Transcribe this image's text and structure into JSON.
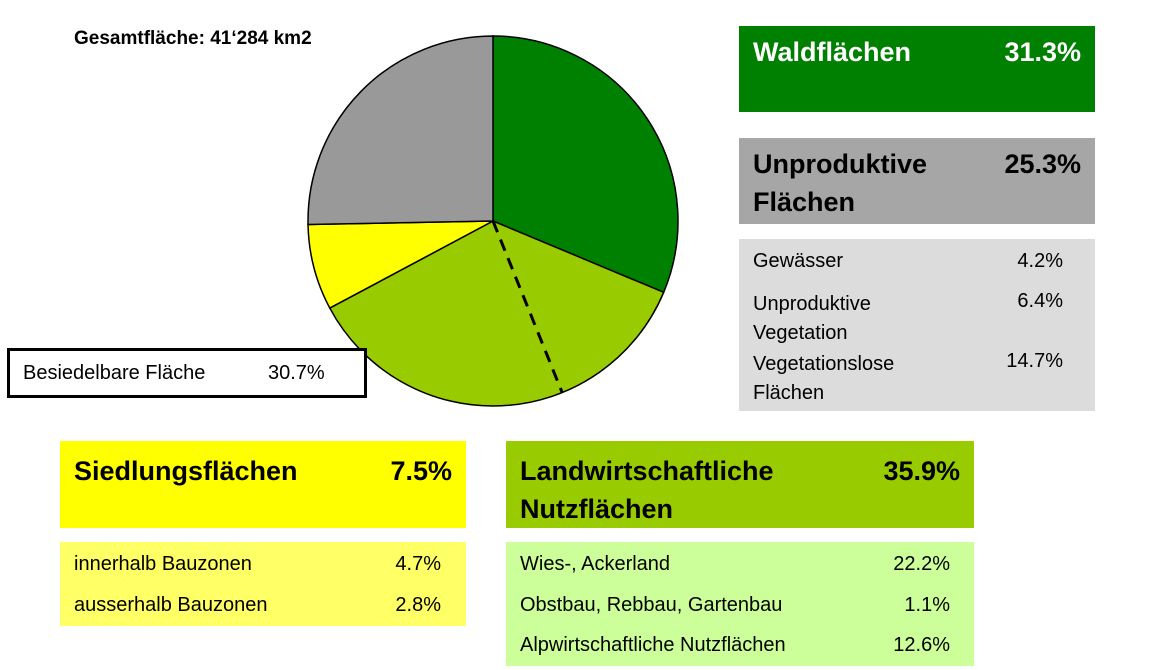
{
  "total_area": "Gesamtfläche: 41‘284 km2",
  "besiedelbar": {
    "label": "Besiedelbare Fläche",
    "value": "30.7%"
  },
  "colors": {
    "wald": "#008000",
    "unproduktiv": "#999999",
    "siedlung": "#ffff00",
    "landwirtschaft": "#99cc00"
  },
  "chart_data": {
    "type": "pie",
    "slices": [
      {
        "label": "Waldflächen",
        "value": 31.3,
        "color": "#008000"
      },
      {
        "label": "Landwirtschaftliche Nutzflächen",
        "value": 35.9,
        "color": "#99cc00"
      },
      {
        "label": "Siedlungsflächen",
        "value": 7.5,
        "color": "#ffff00"
      },
      {
        "label": "Unproduktive Flächen",
        "value": 25.3,
        "color": "#999999"
      }
    ]
  },
  "categories": {
    "wald": {
      "label": "Waldflächen",
      "value": "31.3%"
    },
    "unproduktiv": {
      "label_line1": "Unproduktive",
      "label_line2": "Flächen",
      "value": "25.3%",
      "items": [
        {
          "label_line1": "Gewässer",
          "label_line2": "",
          "value": "4.2%"
        },
        {
          "label_line1": "Unproduktive",
          "label_line2": "Vegetation",
          "value": "6.4%"
        },
        {
          "label_line1": "Vegetationslose",
          "label_line2": "Flächen",
          "value": "14.7%"
        }
      ]
    },
    "siedlung": {
      "label": "Siedlungsflächen",
      "value": "7.5%",
      "items": [
        {
          "label": "innerhalb Bauzonen",
          "value": "4.7%"
        },
        {
          "label": "ausserhalb Bauzonen",
          "value": "2.8%"
        }
      ]
    },
    "landwirtschaft": {
      "label_line1": "Landwirtschaftliche",
      "label_line2": "Nutzflächen",
      "value": "35.9%",
      "items": [
        {
          "label": "Wies-, Ackerland",
          "value": "22.2%"
        },
        {
          "label": "Obstbau, Rebbau, Gartenbau",
          "value": "1.1%"
        },
        {
          "label": "Alpwirtschaftliche Nutzflächen",
          "value": "12.6%"
        }
      ]
    }
  }
}
